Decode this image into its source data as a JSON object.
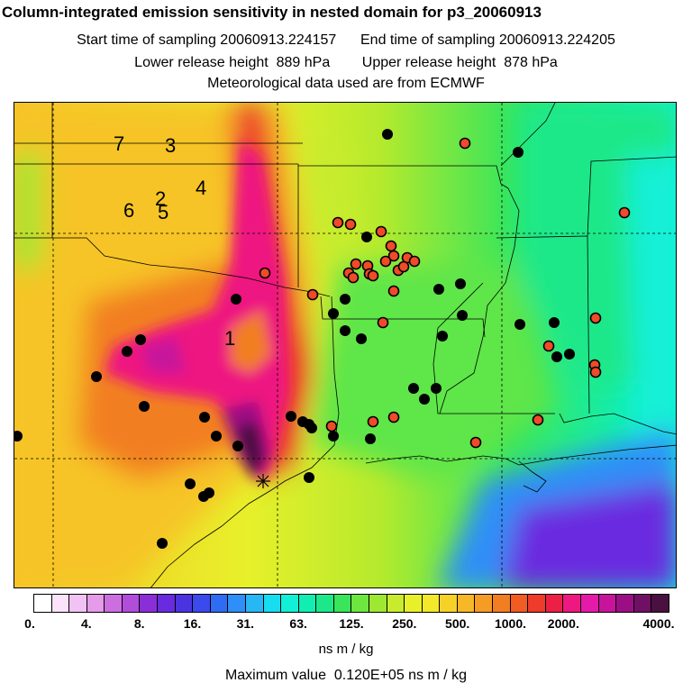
{
  "header": {
    "title": "Column-integrated emission sensitivity in nested domain for p3_20060913",
    "sampling": "Start time of sampling 20060913.224157      End time of sampling 20060913.224205",
    "release": "Lower release height  889 hPa        Upper release height  878 hPa",
    "met": "Meteorological data used are from ECMWF"
  },
  "map": {
    "cluster_labels": [
      "1",
      "2",
      "3",
      "4",
      "5",
      "6",
      "7"
    ],
    "release_marker_icon": "asterisk-icon"
  },
  "colorbar": {
    "tick_labels": [
      "0.",
      "4.",
      "8.",
      "16.",
      "31.",
      "63.",
      "125.",
      "250.",
      "500.",
      "1000.",
      "2000.",
      "4000."
    ],
    "colors": [
      "#ffffff",
      "#fbe3fb",
      "#f3c2f5",
      "#e59be9",
      "#cc6ee0",
      "#b04ddb",
      "#8a2fd8",
      "#6a2ae0",
      "#4a34e0",
      "#3a4aec",
      "#2f6cf4",
      "#2d8ff7",
      "#27b7f5",
      "#18dcf0",
      "#12f0d7",
      "#12eeb2",
      "#1ce889",
      "#38e55b",
      "#6ee640",
      "#9ee832",
      "#c8ec2d",
      "#e8f02a",
      "#f4e82a",
      "#f6d228",
      "#f6b826",
      "#f49c24",
      "#f27e22",
      "#f05c22",
      "#ee3b2a",
      "#ec1f46",
      "#ee1980",
      "#e61aa8",
      "#c8149c",
      "#9c0f84",
      "#701064",
      "#4a1040"
    ],
    "units": "ns m / kg"
  },
  "footer": {
    "max_value": "Maximum value  0.120E+05 ns m / kg"
  }
}
